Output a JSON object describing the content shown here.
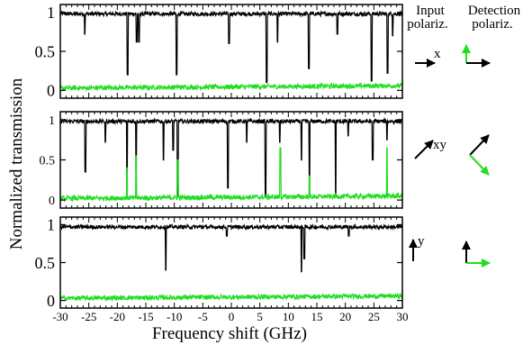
{
  "header": {
    "input_label_line1": "Input",
    "input_label_line2": "polariz.",
    "detection_label_line1": "Detection",
    "detection_label_line2": "polariz."
  },
  "colors": {
    "trace_black": "#000000",
    "trace_green": "#22dd22",
    "axis": "#000000"
  },
  "chart_data": [
    {
      "type": "line",
      "panel": "top",
      "input_polarization_label": "x",
      "xlim": [
        -30,
        30
      ],
      "ylim": [
        -0.1,
        1.1
      ],
      "yticks": [
        0,
        0.5,
        1
      ],
      "ytick_labels": [
        "0",
        "0.5",
        "1"
      ],
      "series": [
        {
          "color": "#000000",
          "baseline": 0.98,
          "dips": [
            [
              -25.7,
              0.72
            ],
            [
              -18.2,
              0.2
            ],
            [
              -16.6,
              0.62
            ],
            [
              -16.2,
              0.62
            ],
            [
              -9.6,
              0.2
            ],
            [
              -0.4,
              0.6
            ],
            [
              6.2,
              0.1
            ],
            [
              8.1,
              0.62
            ],
            [
              13.6,
              0.28
            ],
            [
              18.6,
              0.72
            ],
            [
              24.6,
              0.12
            ],
            [
              27.4,
              0.22
            ],
            [
              28.3,
              0.7
            ]
          ]
        },
        {
          "color": "#22dd22",
          "baseline": 0.03,
          "peaks": []
        }
      ]
    },
    {
      "type": "line",
      "panel": "middle",
      "input_polarization_label": "xy",
      "xlim": [
        -30,
        30
      ],
      "ylim": [
        -0.1,
        1.1
      ],
      "yticks": [
        0,
        0.5,
        1
      ],
      "ytick_labels": [
        "0",
        "0.5",
        "1"
      ],
      "series": [
        {
          "color": "#000000",
          "baseline": 0.98,
          "dips": [
            [
              -25.6,
              0.35
            ],
            [
              -22.1,
              0.72
            ],
            [
              -18.3,
              0.05
            ],
            [
              -16.7,
              0.35
            ],
            [
              -11.9,
              0.5
            ],
            [
              -10.2,
              0.62
            ],
            [
              -9.4,
              0.05
            ],
            [
              -0.6,
              0.15
            ],
            [
              2.7,
              0.72
            ],
            [
              6.0,
              0.05
            ],
            [
              8.5,
              0.72
            ],
            [
              12.3,
              0.5
            ],
            [
              13.7,
              0.1
            ],
            [
              18.3,
              0.05
            ],
            [
              20.5,
              0.8
            ],
            [
              24.8,
              0.5
            ],
            [
              27.3,
              0.75
            ]
          ]
        },
        {
          "color": "#22dd22",
          "baseline": 0.02,
          "peaks": [
            [
              -18.3,
              0.4
            ],
            [
              -16.7,
              0.55
            ],
            [
              -9.4,
              0.5
            ],
            [
              8.6,
              0.65
            ],
            [
              13.7,
              0.3
            ],
            [
              27.3,
              0.65
            ]
          ]
        }
      ]
    },
    {
      "type": "line",
      "panel": "bottom",
      "input_polarization_label": "y",
      "xlim": [
        -30,
        30
      ],
      "ylim": [
        -0.1,
        1.1
      ],
      "yticks": [
        0,
        0.5,
        1
      ],
      "ytick_labels": [
        "0",
        "0.5",
        "1"
      ],
      "xticks": [
        -30,
        -25,
        -20,
        -15,
        -10,
        -5,
        0,
        5,
        10,
        15,
        20,
        25,
        30
      ],
      "xtick_labels": [
        "-30",
        "-25",
        "-20",
        "-15",
        "-10",
        "-5",
        "0",
        "5",
        "10",
        "15",
        "20",
        "25",
        "30"
      ],
      "series": [
        {
          "color": "#000000",
          "baseline": 0.97,
          "dips": [
            [
              -11.5,
              0.4
            ],
            [
              -0.8,
              0.85
            ],
            [
              12.3,
              0.38
            ],
            [
              12.8,
              0.55
            ],
            [
              20.6,
              0.85
            ]
          ]
        },
        {
          "color": "#22dd22",
          "baseline": 0.03,
          "peaks": []
        }
      ]
    }
  ],
  "xlabel": "Frequency shift (GHz)",
  "ylabel": "Normalized transmission"
}
